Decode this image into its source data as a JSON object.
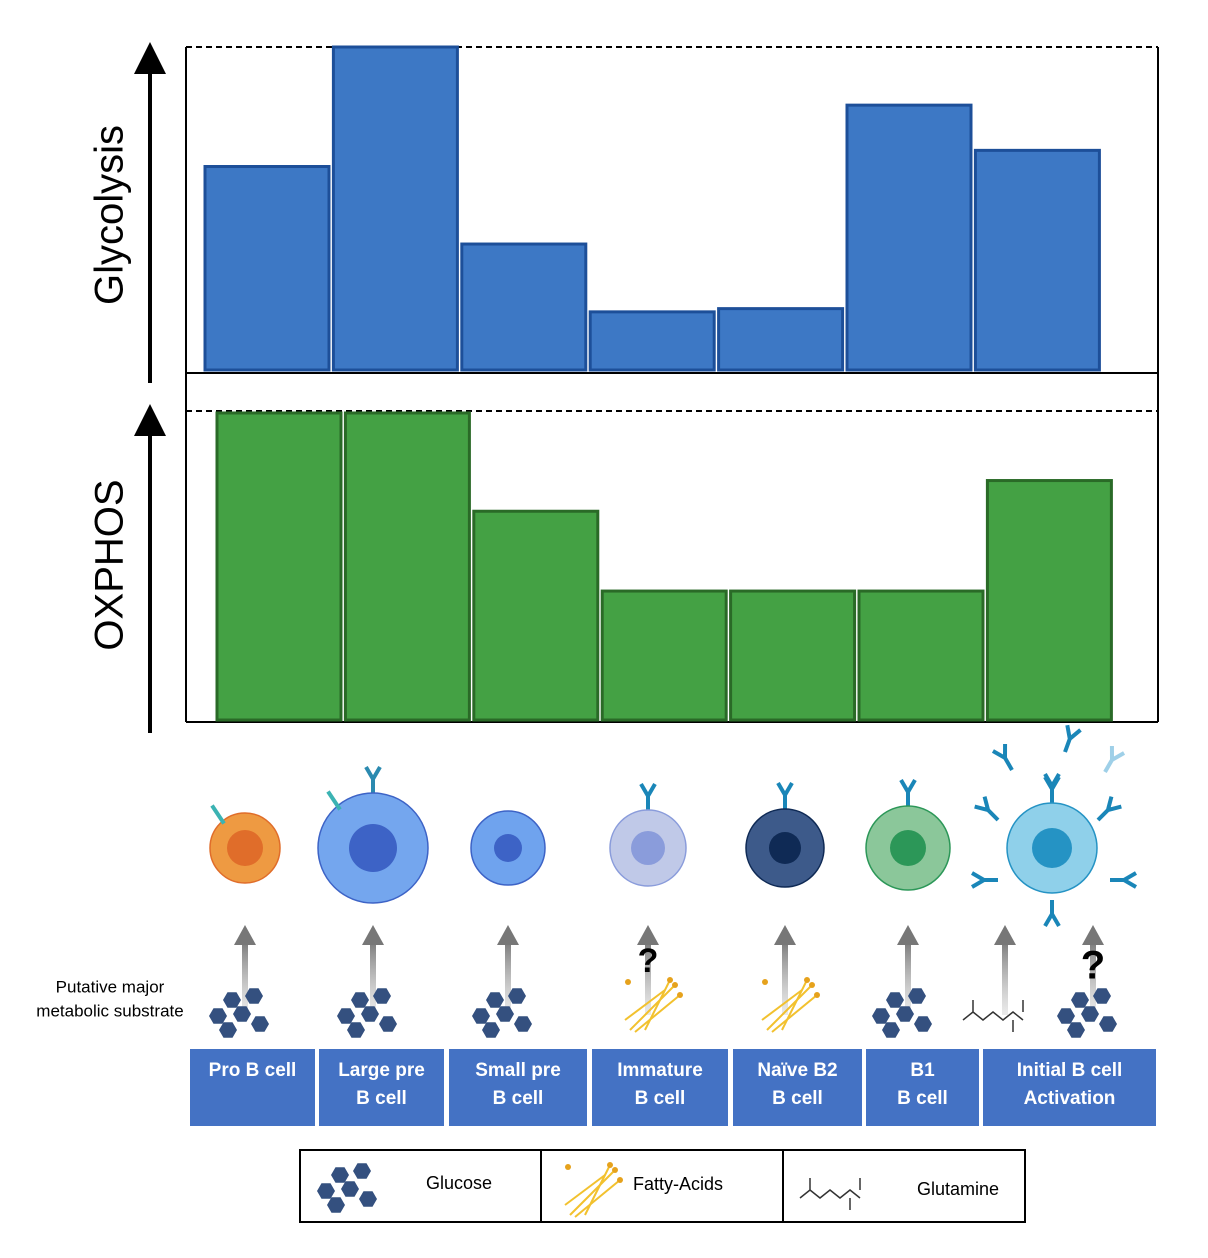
{
  "chart_data": [
    {
      "type": "bar",
      "y_label": "Glycolysis",
      "values": [
        63,
        100,
        39,
        18,
        19,
        82,
        68
      ],
      "ylim": [
        0,
        100
      ],
      "color": "#3d78c5"
    },
    {
      "type": "bar",
      "y_label": "OXPHOS",
      "values": [
        100,
        100,
        68,
        42,
        42,
        42,
        78
      ],
      "ylim": [
        0,
        100
      ],
      "color": "#44a144"
    }
  ],
  "substrate_label": [
    "Putative major",
    "metabolic substrate"
  ],
  "stages": [
    [
      "Pro B cell"
    ],
    [
      "Large pre",
      "B cell"
    ],
    [
      "Small pre",
      "B cell"
    ],
    [
      "Immature",
      "B cell"
    ],
    [
      "Naïve B2",
      "B cell"
    ],
    [
      "B1",
      "B cell"
    ],
    [
      "Initial B cell",
      "Activation"
    ]
  ],
  "question_marks": [
    "?",
    "?"
  ],
  "legend": [
    "Glucose",
    "Fatty-Acids",
    "Glutamine"
  ]
}
